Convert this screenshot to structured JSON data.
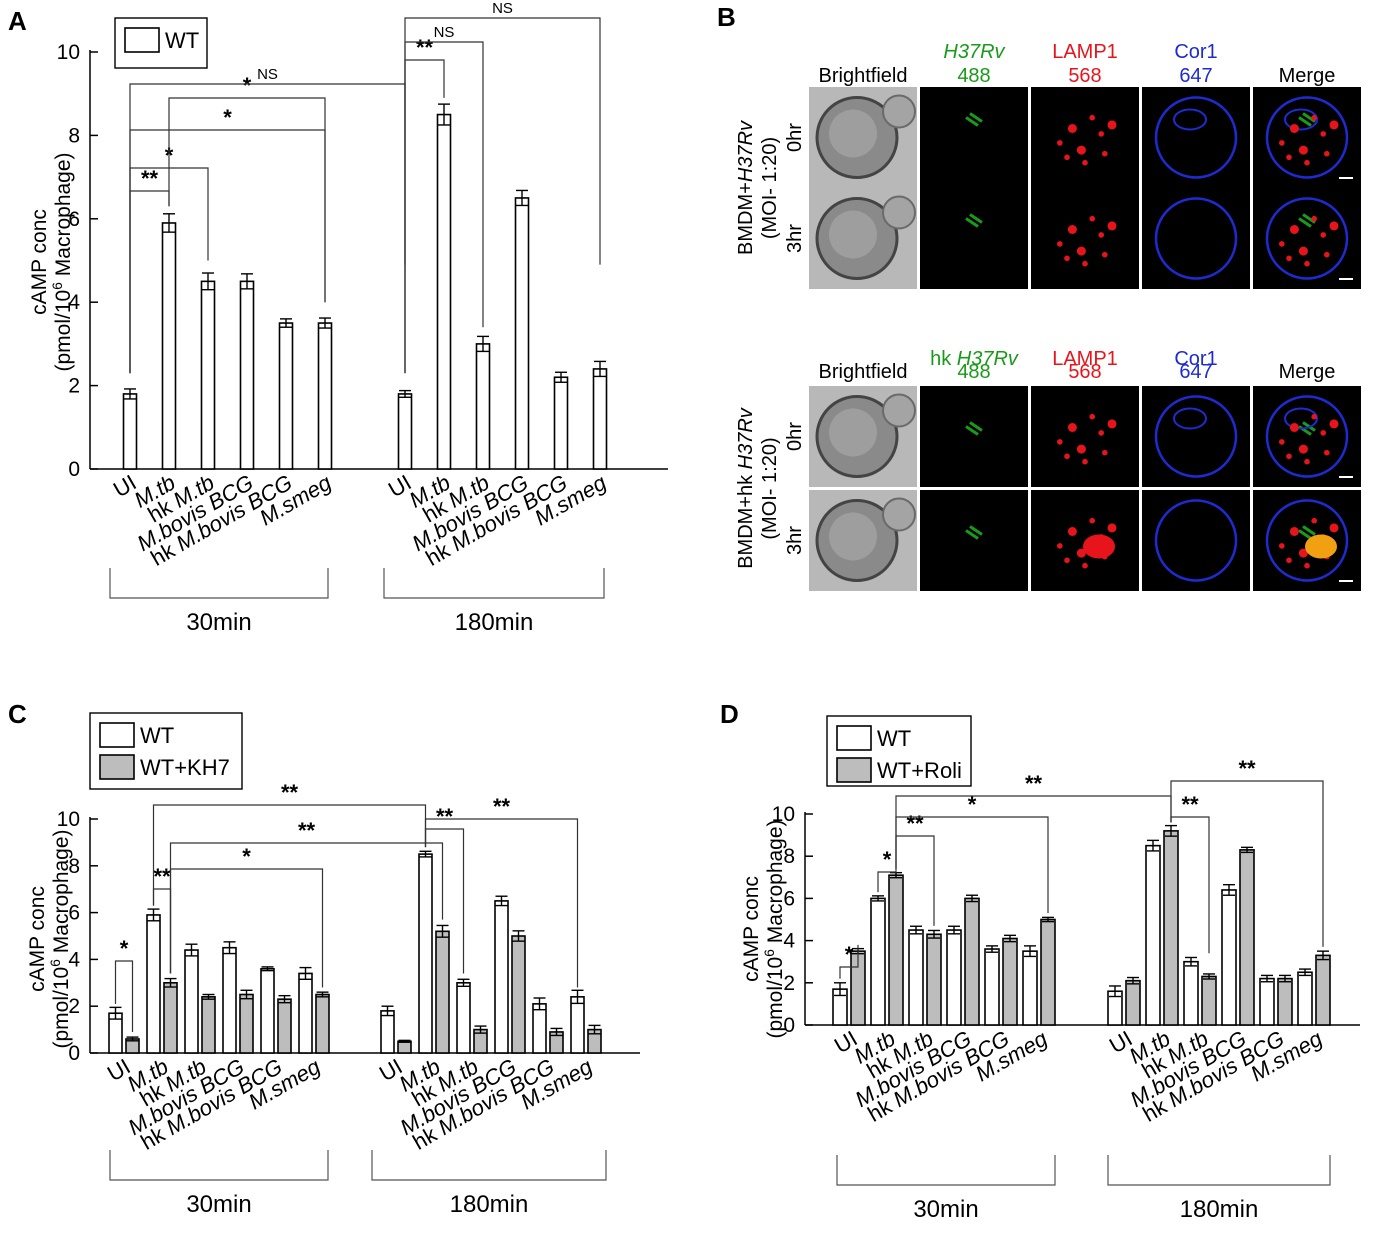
{
  "panels": {
    "a": "A",
    "b": "B",
    "c": "C",
    "d": "D"
  },
  "colors": {
    "wt_fill": "#ffffff",
    "treated_fill": "#bdbdbd",
    "bar_stroke": "#000000",
    "green": "#1a9a1a",
    "red": "#e8141c",
    "blue": "#1f2bd0"
  },
  "shared": {
    "ylabel_line1": "cAMP conc",
    "ylabel_line2_pre": "(pmol/10",
    "ylabel_sup": "6",
    "ylabel_line2_post": " Macrophage)",
    "ylabel_line2_post_d": " Macrophage)",
    "group_labels": [
      "30min",
      "180min"
    ],
    "categories": [
      "UI",
      "M.tb",
      "hk M.tb",
      "M.bovis BCG",
      "hk M.bovis BCG",
      "M.smeg"
    ],
    "category_parts": [
      [
        {
          "t": "UI",
          "i": false
        }
      ],
      [
        {
          "t": "M.tb",
          "i": true
        }
      ],
      [
        {
          "t": "hk ",
          "i": false
        },
        {
          "t": "M.tb",
          "i": true
        }
      ],
      [
        {
          "t": "M.bovis BCG",
          "i": true
        }
      ],
      [
        {
          "t": "hk ",
          "i": false
        },
        {
          "t": "M.bovis BCG",
          "i": true
        }
      ],
      [
        {
          "t": "M.smeg",
          "i": true
        }
      ]
    ]
  },
  "chart_data": [
    {
      "panel": "A",
      "type": "bar",
      "ylim": [
        0,
        10
      ],
      "yticks": [
        0,
        2,
        4,
        6,
        8,
        10
      ],
      "legend": [
        "WT"
      ],
      "series": [
        {
          "name": "WT",
          "values_30": [
            1.8,
            5.9,
            4.5,
            4.5,
            3.5,
            3.5
          ],
          "err_30": [
            0.12,
            0.22,
            0.2,
            0.18,
            0.1,
            0.12
          ],
          "values_180": [
            1.8,
            8.5,
            3.0,
            6.5,
            2.2,
            2.4
          ],
          "err_180": [
            0.08,
            0.25,
            0.18,
            0.18,
            0.12,
            0.18
          ]
        }
      ],
      "significance": [
        {
          "from": [
            "30",
            0
          ],
          "to": [
            "30",
            1
          ],
          "label": "**"
        },
        {
          "from": [
            "30",
            0
          ],
          "to": [
            "30",
            2
          ],
          "label": "*"
        },
        {
          "from": [
            "30",
            0
          ],
          "to": [
            "30",
            5
          ],
          "label": "*"
        },
        {
          "from": [
            "30",
            1
          ],
          "to": [
            "30",
            5
          ],
          "label": "*"
        },
        {
          "from": [
            "30",
            0
          ],
          "to": [
            "180",
            0
          ],
          "label": "NS"
        },
        {
          "from": [
            "180",
            0
          ],
          "to": [
            "180",
            1
          ],
          "label": "**"
        },
        {
          "from": [
            "180",
            0
          ],
          "to": [
            "180",
            2
          ],
          "label": "NS"
        },
        {
          "from": [
            "180",
            0
          ],
          "to": [
            "180",
            5
          ],
          "label": "NS"
        }
      ]
    },
    {
      "panel": "C",
      "type": "bar",
      "ylim": [
        0,
        10
      ],
      "yticks": [
        0,
        2,
        4,
        6,
        8,
        10
      ],
      "legend": [
        "WT",
        "WT+KH7"
      ],
      "series": [
        {
          "name": "WT",
          "values_30": [
            1.7,
            5.9,
            4.4,
            4.5,
            3.6,
            3.4
          ],
          "err_30": [
            0.25,
            0.25,
            0.25,
            0.25,
            0.08,
            0.25
          ],
          "values_180": [
            1.8,
            8.5,
            3.0,
            6.5,
            2.1,
            2.4
          ],
          "err_180": [
            0.2,
            0.12,
            0.15,
            0.2,
            0.25,
            0.28
          ]
        },
        {
          "name": "WT+KH7",
          "values_30": [
            0.6,
            3.0,
            2.4,
            2.5,
            2.3,
            2.5
          ],
          "err_30": [
            0.08,
            0.18,
            0.1,
            0.18,
            0.15,
            0.1
          ],
          "values_180": [
            0.5,
            5.2,
            1.0,
            5.0,
            0.9,
            1.0
          ],
          "err_180": [
            0.04,
            0.25,
            0.15,
            0.22,
            0.15,
            0.18
          ]
        }
      ],
      "significance": [
        {
          "from": [
            "30",
            0,
            0
          ],
          "to": [
            "30",
            0,
            1
          ],
          "label": "*"
        },
        {
          "from": [
            "30",
            1,
            0
          ],
          "to": [
            "30",
            1,
            1
          ],
          "label": "**"
        },
        {
          "from": [
            "30",
            1,
            1
          ],
          "to": [
            "30",
            5,
            1
          ],
          "label": "*"
        },
        {
          "from": [
            "30",
            1,
            1
          ],
          "to": [
            "180",
            1,
            1
          ],
          "label": "**"
        },
        {
          "from": [
            "30",
            1,
            0
          ],
          "to": [
            "180",
            1,
            0
          ],
          "label": "**"
        },
        {
          "from": [
            "180",
            1,
            0
          ],
          "to": [
            "180",
            2,
            0
          ],
          "label": "**"
        },
        {
          "from": [
            "180",
            1,
            0
          ],
          "to": [
            "180",
            5,
            0
          ],
          "label": "**"
        }
      ]
    },
    {
      "panel": "D",
      "type": "bar",
      "ylim": [
        0,
        10
      ],
      "yticks": [
        0,
        2,
        4,
        6,
        8,
        10
      ],
      "legend": [
        "WT",
        "WT+Roli"
      ],
      "series": [
        {
          "name": "WT",
          "values_30": [
            1.7,
            6.0,
            4.5,
            4.5,
            3.6,
            3.5
          ],
          "err_30": [
            0.3,
            0.12,
            0.18,
            0.18,
            0.15,
            0.25
          ],
          "values_180": [
            1.6,
            8.5,
            3.0,
            6.4,
            2.2,
            2.5
          ],
          "err_180": [
            0.25,
            0.25,
            0.2,
            0.25,
            0.15,
            0.15
          ]
        },
        {
          "name": "WT+Roli",
          "values_30": [
            3.5,
            7.1,
            4.3,
            6.0,
            4.1,
            5.0
          ],
          "err_30": [
            0.12,
            0.12,
            0.18,
            0.15,
            0.15,
            0.1
          ],
          "values_180": [
            2.1,
            9.2,
            2.3,
            8.3,
            2.2,
            3.3
          ],
          "err_180": [
            0.15,
            0.25,
            0.12,
            0.12,
            0.15,
            0.2
          ]
        }
      ],
      "significance": [
        {
          "from": [
            "30",
            0,
            0
          ],
          "to": [
            "30",
            0,
            1
          ],
          "label": "*"
        },
        {
          "from": [
            "30",
            1,
            0
          ],
          "to": [
            "30",
            1,
            1
          ],
          "label": "*"
        },
        {
          "from": [
            "30",
            1,
            1
          ],
          "to": [
            "30",
            2,
            1
          ],
          "label": "**"
        },
        {
          "from": [
            "30",
            1,
            1
          ],
          "to": [
            "30",
            5,
            1
          ],
          "label": "*"
        },
        {
          "from": [
            "30",
            1,
            1
          ],
          "to": [
            "180",
            1,
            1
          ],
          "label": "**"
        },
        {
          "from": [
            "180",
            1,
            1
          ],
          "to": [
            "180",
            2,
            1
          ],
          "label": "**"
        },
        {
          "from": [
            "180",
            1,
            1
          ],
          "to": [
            "180",
            5,
            1
          ],
          "label": "**"
        }
      ]
    }
  ],
  "microscopy": {
    "top": {
      "headers": [
        [
          {
            "t": "Brightfield",
            "c": "black",
            "i": false
          }
        ],
        [
          {
            "t": "H37Rv",
            "c": "green",
            "i": true
          }
        ],
        [
          {
            "t": "LAMP1",
            "c": "red",
            "i": false
          }
        ],
        [
          {
            "t": "Cor1",
            "c": "blue",
            "i": false
          }
        ],
        [
          {
            "t": "Merge",
            "c": "black",
            "i": false
          }
        ]
      ],
      "subheaders": [
        "",
        "488",
        "568",
        "647",
        ""
      ],
      "side_label_pre": "BMDM+",
      "side_label_ital": "H37Rv",
      "side_label_moi": "(MOI- 1:20)",
      "rows": [
        "0hr",
        "3hr"
      ]
    },
    "bottom": {
      "headers": [
        [
          {
            "t": "Brightfield",
            "c": "black",
            "i": false
          }
        ],
        [
          {
            "t": "hk ",
            "c": "green",
            "i": false
          },
          {
            "t": "H37Rv",
            "c": "green",
            "i": true
          }
        ],
        [
          {
            "t": "LAMP1",
            "c": "red",
            "i": false
          }
        ],
        [
          {
            "t": "Cor1",
            "c": "blue",
            "i": false
          }
        ],
        [
          {
            "t": "Merge",
            "c": "black",
            "i": false
          }
        ]
      ],
      "subheaders": [
        "",
        "488",
        "568",
        "647",
        ""
      ],
      "side_label_pre": "BMDM+hk ",
      "side_label_ital": "H37Rv",
      "side_label_moi": "(MOI- 1:20)",
      "rows": [
        "0hr",
        "3hr"
      ]
    }
  }
}
